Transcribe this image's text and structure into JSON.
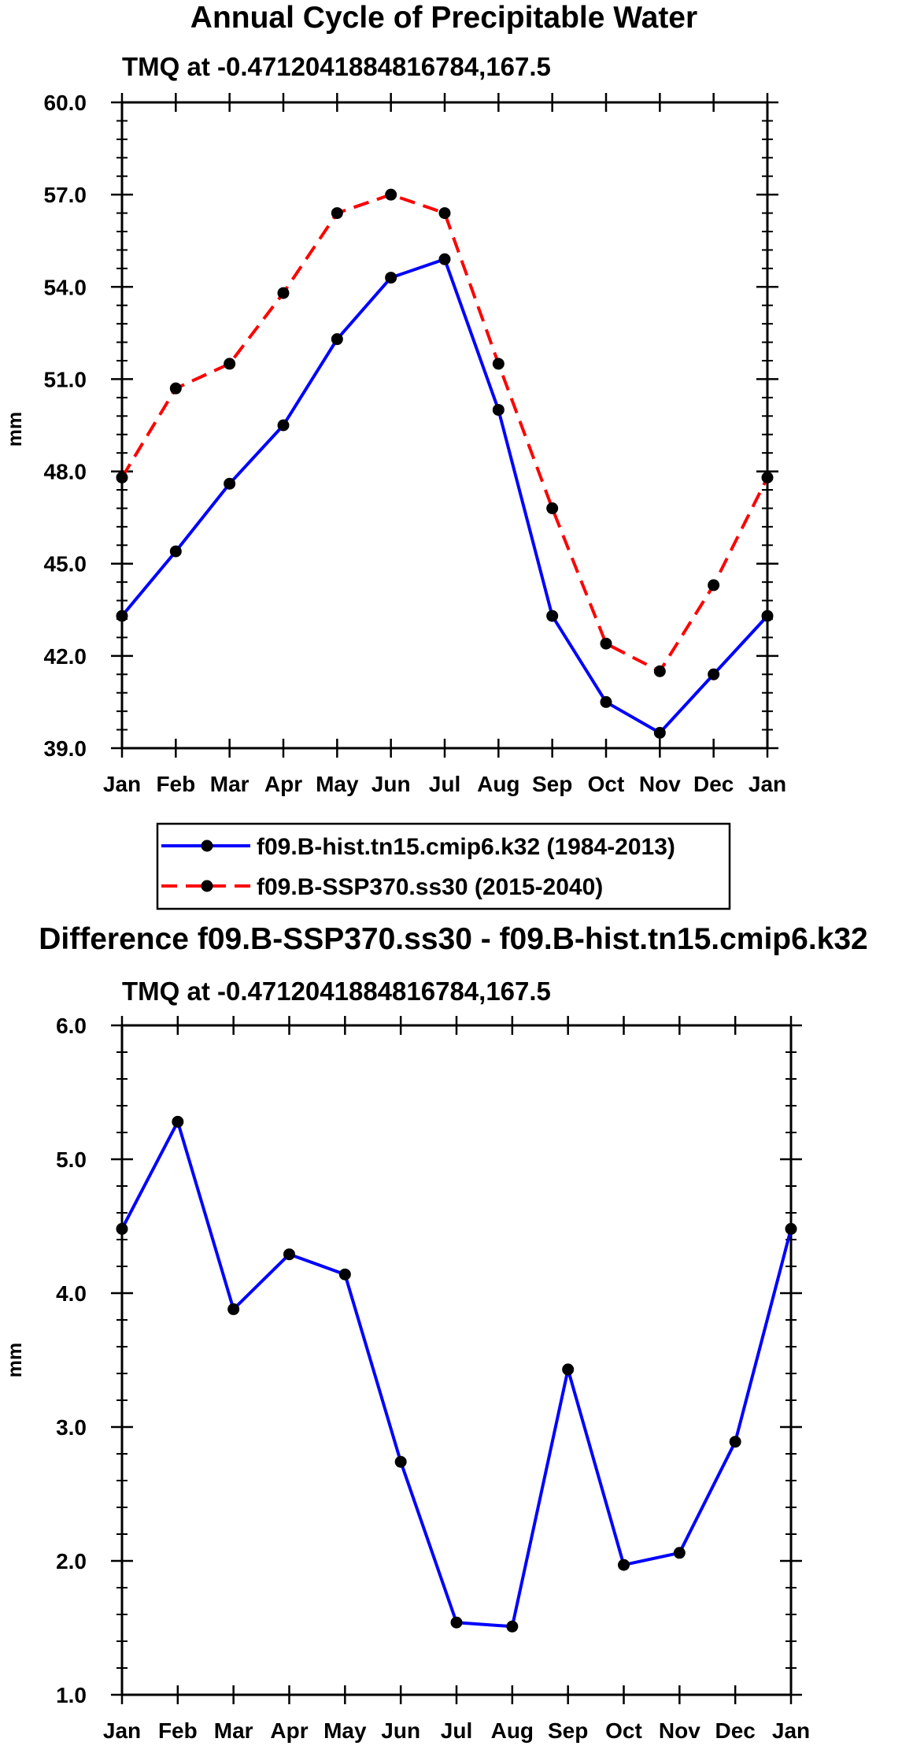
{
  "chart_data": [
    {
      "type": "line",
      "title": "Annual Cycle of Precipitable Water",
      "subtitle": "TMQ at -0.4712041884816784,167.5",
      "xlabel": "",
      "ylabel": "mm",
      "categories": [
        "Jan",
        "Feb",
        "Mar",
        "Apr",
        "May",
        "Jun",
        "Jul",
        "Aug",
        "Sep",
        "Oct",
        "Nov",
        "Dec",
        "Jan"
      ],
      "ylim": [
        39.0,
        60.0
      ],
      "yticks": [
        "39.0",
        "42.0",
        "45.0",
        "48.0",
        "51.0",
        "54.0",
        "57.0",
        "60.0"
      ],
      "series": [
        {
          "name": "f09.B-hist.tn15.cmip6.k32 (1984-2013)",
          "color": "#0000ff",
          "dash": "solid",
          "values": [
            43.3,
            45.4,
            47.6,
            49.5,
            52.3,
            54.3,
            54.9,
            50.0,
            43.3,
            40.5,
            39.5,
            41.4,
            43.3
          ]
        },
        {
          "name": "f09.B-SSP370.ss30 (2015-2040)",
          "color": "#ff0000",
          "dash": "dashed",
          "values": [
            47.8,
            50.7,
            51.5,
            53.8,
            56.4,
            57.0,
            56.4,
            51.5,
            46.8,
            42.4,
            41.5,
            44.3,
            47.8
          ]
        }
      ],
      "legend": "bottom"
    },
    {
      "type": "line",
      "title": "Difference f09.B-SSP370.ss30 - f09.B-hist.tn15.cmip6.k32",
      "subtitle": "TMQ at -0.4712041884816784,167.5",
      "xlabel": "",
      "ylabel": "mm",
      "categories": [
        "Jan",
        "Feb",
        "Mar",
        "Apr",
        "May",
        "Jun",
        "Jul",
        "Aug",
        "Sep",
        "Oct",
        "Nov",
        "Dec",
        "Jan"
      ],
      "ylim": [
        1.0,
        6.0
      ],
      "yticks": [
        "1.0",
        "2.0",
        "3.0",
        "4.0",
        "5.0",
        "6.0"
      ],
      "series": [
        {
          "name": "Difference",
          "color": "#0000ff",
          "dash": "solid",
          "values": [
            4.48,
            5.28,
            3.88,
            4.29,
            4.14,
            2.74,
            1.54,
            1.51,
            3.43,
            1.97,
            2.06,
            2.89,
            4.48
          ]
        }
      ]
    }
  ]
}
